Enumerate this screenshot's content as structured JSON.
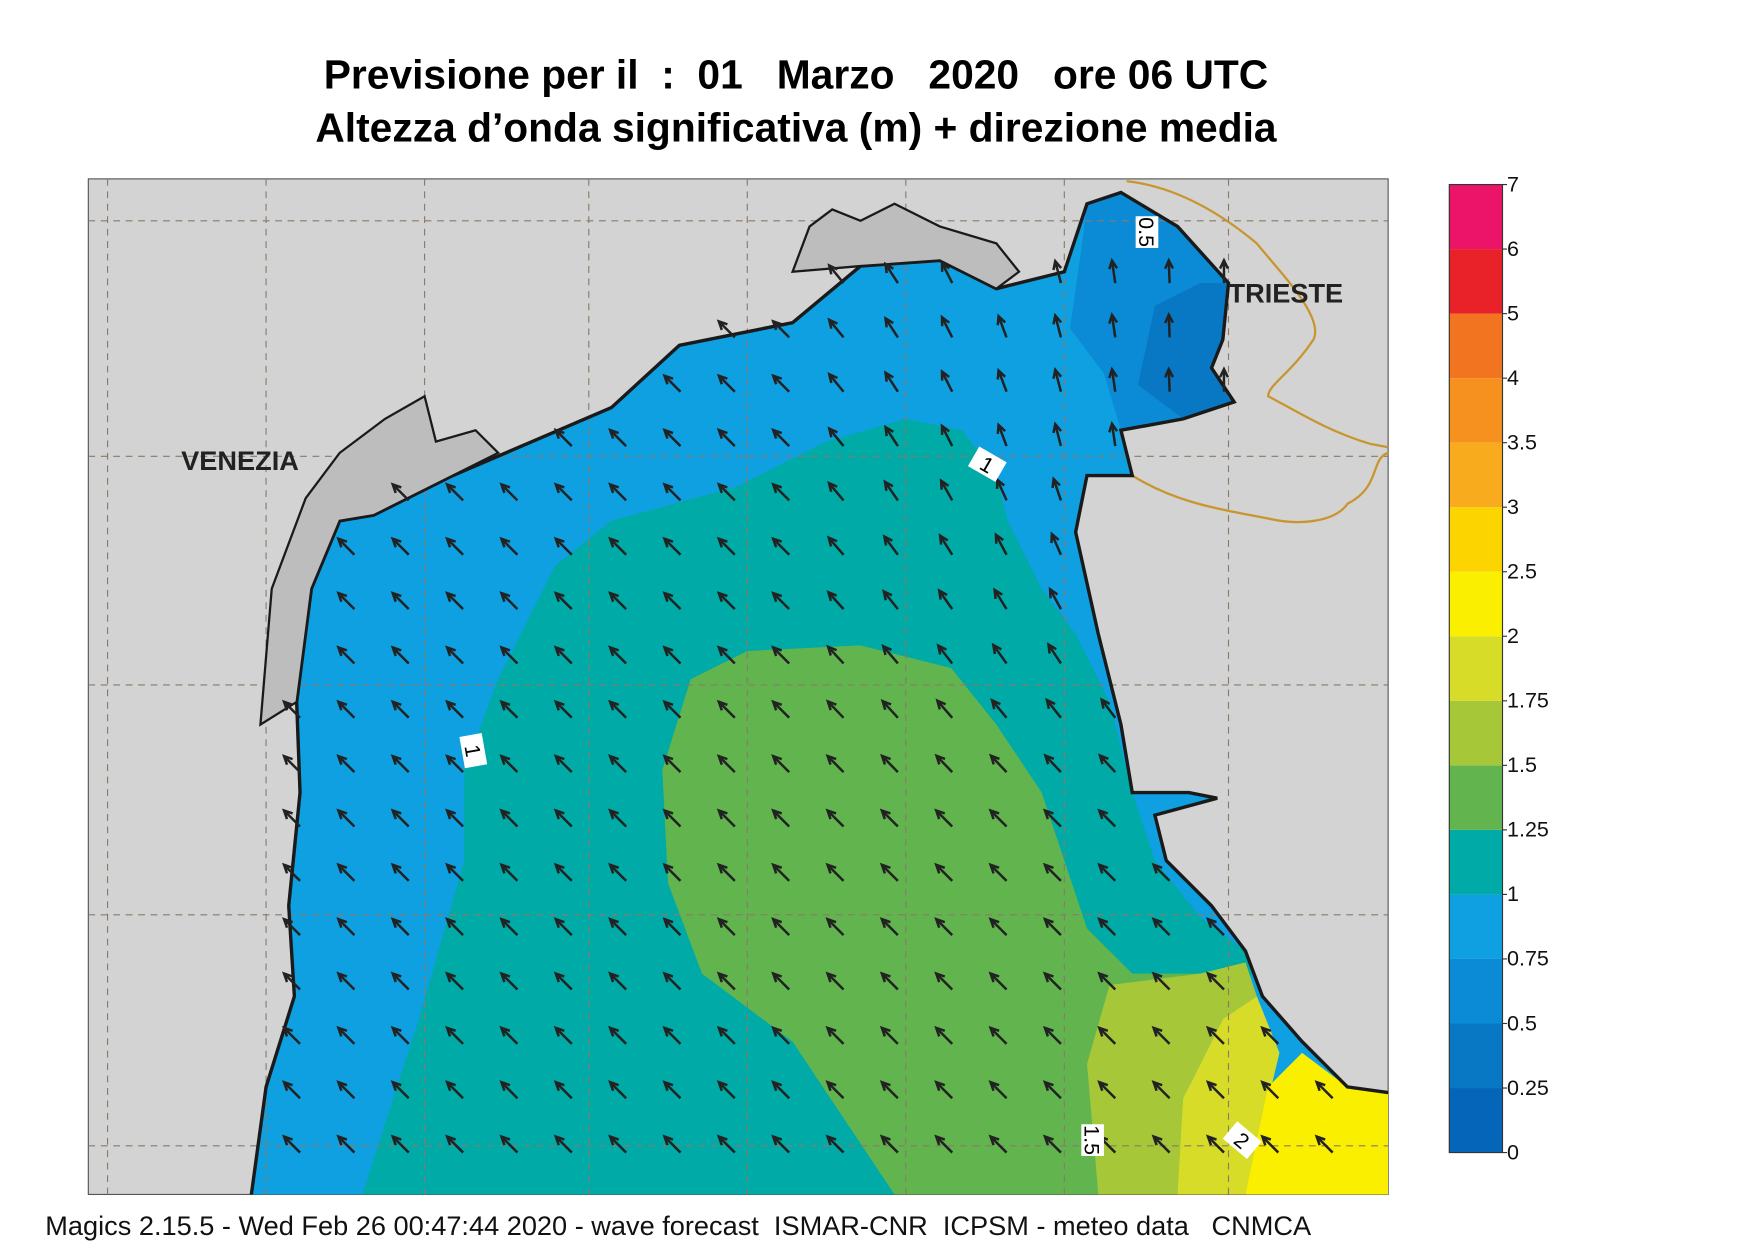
{
  "header": {
    "title_line1": "Previsione per il  :  01   Marzo   2020   ore 06 UTC",
    "title_line2": "Altezza d’onda significativa (m) + direzione media"
  },
  "map": {
    "place_labels": [
      "VENEZIA",
      "TRIESTE"
    ],
    "contour_labels": [
      "0.5",
      "1",
      "1",
      "1.5",
      "2"
    ]
  },
  "legend": {
    "ticks": [
      0,
      0.25,
      0.5,
      0.75,
      1,
      1.25,
      1.5,
      1.75,
      2,
      2.5,
      3,
      3.5,
      4,
      5,
      6,
      7
    ],
    "colors": [
      "#0565b8",
      "#0978c4",
      "#0b8bd6",
      "#0fa0e2",
      "#00aaa6",
      "#62b54e",
      "#a6c838",
      "#d6dc28",
      "#fbef00",
      "#fcd400",
      "#f8ab1c",
      "#f6901e",
      "#f27420",
      "#e82228",
      "#eb1468"
    ]
  },
  "footer": "Magics 2.15.5 - Wed Feb 26 00:47:44 2020 - wave forecast  ISMAR-CNR  ICPSM - meteo data   CNMCA"
}
